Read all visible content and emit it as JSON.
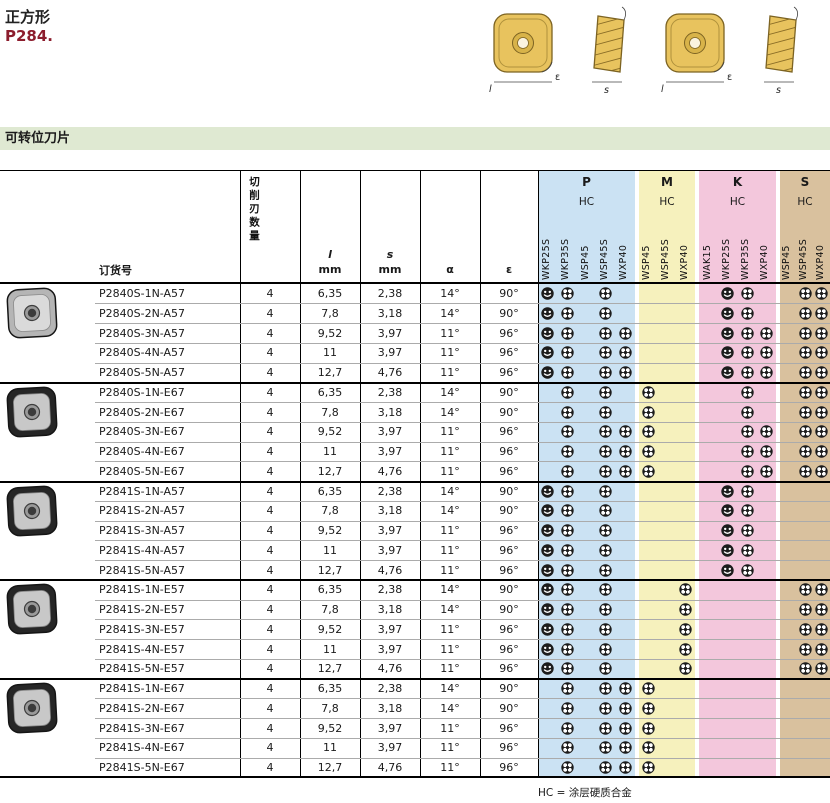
{
  "page": {
    "title": "正方形",
    "subtitle": "P284.",
    "section_header": "可转位刀片",
    "footnote": "HC = 涂层硬质合金"
  },
  "diagrams": {
    "label_l": "l",
    "label_s": "s",
    "label_eps": "ε"
  },
  "table": {
    "col_headers": {
      "order_no": "订货号",
      "edges": "切削刃数量",
      "l": "l",
      "l_unit": "mm",
      "s": "s",
      "s_unit": "mm",
      "alpha": "α",
      "epsilon": "ε"
    },
    "grade_groups": [
      {
        "label": "P",
        "coating": "HC",
        "color": "#cbe2f3",
        "grades": [
          "WKP25S",
          "WKP35S",
          "WSP45",
          "WSP45S",
          "WXP40"
        ]
      },
      {
        "label": "M",
        "coating": "HC",
        "color": "#f6f1bd",
        "grades": [
          "WSP45",
          "WSP45S",
          "WXP40"
        ]
      },
      {
        "label": "K",
        "coating": "HC",
        "color": "#f3c7dc",
        "grades": [
          "WAK15",
          "WKP25S",
          "WKP35S",
          "WXP40"
        ]
      },
      {
        "label": "S",
        "coating": "HC",
        "color": "#d9c19e",
        "grades": [
          "WSP45",
          "WSP45S",
          "WXP40"
        ]
      }
    ],
    "row_groups": [
      {
        "photo": "silver"
      },
      {
        "photo": "black"
      },
      {
        "photo": "black"
      },
      {
        "photo": "black"
      },
      {
        "photo": "black"
      }
    ],
    "rows": [
      {
        "order": "P2840S-1N-A57",
        "edges": "4",
        "l": "6,35",
        "s": "2,38",
        "alpha": "14°",
        "epsilon": "90°",
        "avail": [
          1,
          2,
          0,
          2,
          0,
          0,
          0,
          0,
          0,
          1,
          2,
          0,
          0,
          2,
          2
        ]
      },
      {
        "order": "P2840S-2N-A57",
        "edges": "4",
        "l": "7,8",
        "s": "3,18",
        "alpha": "14°",
        "epsilon": "90°",
        "avail": [
          1,
          2,
          0,
          2,
          0,
          0,
          0,
          0,
          0,
          1,
          2,
          0,
          0,
          2,
          2
        ]
      },
      {
        "order": "P2840S-3N-A57",
        "edges": "4",
        "l": "9,52",
        "s": "3,97",
        "alpha": "11°",
        "epsilon": "96°",
        "avail": [
          1,
          2,
          0,
          2,
          2,
          0,
          0,
          0,
          0,
          1,
          2,
          2,
          0,
          2,
          2
        ]
      },
      {
        "order": "P2840S-4N-A57",
        "edges": "4",
        "l": "11",
        "s": "3,97",
        "alpha": "11°",
        "epsilon": "96°",
        "avail": [
          1,
          2,
          0,
          2,
          2,
          0,
          0,
          0,
          0,
          1,
          2,
          2,
          0,
          2,
          2
        ]
      },
      {
        "order": "P2840S-5N-A57",
        "edges": "4",
        "l": "12,7",
        "s": "4,76",
        "alpha": "11°",
        "epsilon": "96°",
        "avail": [
          1,
          2,
          0,
          2,
          2,
          0,
          0,
          0,
          0,
          1,
          2,
          2,
          0,
          2,
          2
        ]
      },
      {
        "order": "P2840S-1N-E67",
        "edges": "4",
        "l": "6,35",
        "s": "2,38",
        "alpha": "14°",
        "epsilon": "90°",
        "avail": [
          0,
          2,
          0,
          2,
          0,
          2,
          0,
          0,
          0,
          0,
          2,
          0,
          0,
          2,
          2
        ]
      },
      {
        "order": "P2840S-2N-E67",
        "edges": "4",
        "l": "7,8",
        "s": "3,18",
        "alpha": "14°",
        "epsilon": "90°",
        "avail": [
          0,
          2,
          0,
          2,
          0,
          2,
          0,
          0,
          0,
          0,
          2,
          0,
          0,
          2,
          2
        ]
      },
      {
        "order": "P2840S-3N-E67",
        "edges": "4",
        "l": "9,52",
        "s": "3,97",
        "alpha": "11°",
        "epsilon": "96°",
        "avail": [
          0,
          2,
          0,
          2,
          2,
          2,
          0,
          0,
          0,
          0,
          2,
          2,
          0,
          2,
          2
        ]
      },
      {
        "order": "P2840S-4N-E67",
        "edges": "4",
        "l": "11",
        "s": "3,97",
        "alpha": "11°",
        "epsilon": "96°",
        "avail": [
          0,
          2,
          0,
          2,
          2,
          2,
          0,
          0,
          0,
          0,
          2,
          2,
          0,
          2,
          2
        ]
      },
      {
        "order": "P2840S-5N-E67",
        "edges": "4",
        "l": "12,7",
        "s": "4,76",
        "alpha": "11°",
        "epsilon": "96°",
        "avail": [
          0,
          2,
          0,
          2,
          2,
          2,
          0,
          0,
          0,
          0,
          2,
          2,
          0,
          2,
          2
        ]
      },
      {
        "order": "P2841S-1N-A57",
        "edges": "4",
        "l": "6,35",
        "s": "2,38",
        "alpha": "14°",
        "epsilon": "90°",
        "avail": [
          1,
          2,
          0,
          2,
          0,
          0,
          0,
          0,
          0,
          1,
          2,
          0,
          0,
          0,
          0
        ]
      },
      {
        "order": "P2841S-2N-A57",
        "edges": "4",
        "l": "7,8",
        "s": "3,18",
        "alpha": "14°",
        "epsilon": "90°",
        "avail": [
          1,
          2,
          0,
          2,
          0,
          0,
          0,
          0,
          0,
          1,
          2,
          0,
          0,
          0,
          0
        ]
      },
      {
        "order": "P2841S-3N-A57",
        "edges": "4",
        "l": "9,52",
        "s": "3,97",
        "alpha": "11°",
        "epsilon": "96°",
        "avail": [
          1,
          2,
          0,
          2,
          0,
          0,
          0,
          0,
          0,
          1,
          2,
          0,
          0,
          0,
          0
        ]
      },
      {
        "order": "P2841S-4N-A57",
        "edges": "4",
        "l": "11",
        "s": "3,97",
        "alpha": "11°",
        "epsilon": "96°",
        "avail": [
          1,
          2,
          0,
          2,
          0,
          0,
          0,
          0,
          0,
          1,
          2,
          0,
          0,
          0,
          0
        ]
      },
      {
        "order": "P2841S-5N-A57",
        "edges": "4",
        "l": "12,7",
        "s": "4,76",
        "alpha": "11°",
        "epsilon": "96°",
        "avail": [
          1,
          2,
          0,
          2,
          0,
          0,
          0,
          0,
          0,
          1,
          2,
          0,
          0,
          0,
          0
        ]
      },
      {
        "order": "P2841S-1N-E57",
        "edges": "4",
        "l": "6,35",
        "s": "2,38",
        "alpha": "14°",
        "epsilon": "90°",
        "avail": [
          1,
          2,
          0,
          2,
          0,
          0,
          0,
          2,
          0,
          0,
          0,
          0,
          0,
          2,
          2
        ]
      },
      {
        "order": "P2841S-2N-E57",
        "edges": "4",
        "l": "7,8",
        "s": "3,18",
        "alpha": "14°",
        "epsilon": "90°",
        "avail": [
          1,
          2,
          0,
          2,
          0,
          0,
          0,
          2,
          0,
          0,
          0,
          0,
          0,
          2,
          2
        ]
      },
      {
        "order": "P2841S-3N-E57",
        "edges": "4",
        "l": "9,52",
        "s": "3,97",
        "alpha": "11°",
        "epsilon": "96°",
        "avail": [
          1,
          2,
          0,
          2,
          0,
          0,
          0,
          2,
          0,
          0,
          0,
          0,
          0,
          2,
          2
        ]
      },
      {
        "order": "P2841S-4N-E57",
        "edges": "4",
        "l": "11",
        "s": "3,97",
        "alpha": "11°",
        "epsilon": "96°",
        "avail": [
          1,
          2,
          0,
          2,
          0,
          0,
          0,
          2,
          0,
          0,
          0,
          0,
          0,
          2,
          2
        ]
      },
      {
        "order": "P2841S-5N-E57",
        "edges": "4",
        "l": "12,7",
        "s": "4,76",
        "alpha": "11°",
        "epsilon": "96°",
        "avail": [
          1,
          2,
          0,
          2,
          0,
          0,
          0,
          2,
          0,
          0,
          0,
          0,
          0,
          2,
          2
        ]
      },
      {
        "order": "P2841S-1N-E67",
        "edges": "4",
        "l": "6,35",
        "s": "2,38",
        "alpha": "14°",
        "epsilon": "90°",
        "avail": [
          0,
          2,
          0,
          2,
          2,
          2,
          0,
          0,
          0,
          0,
          0,
          0,
          0,
          0,
          0
        ]
      },
      {
        "order": "P2841S-2N-E67",
        "edges": "4",
        "l": "7,8",
        "s": "3,18",
        "alpha": "14°",
        "epsilon": "90°",
        "avail": [
          0,
          2,
          0,
          2,
          2,
          2,
          0,
          0,
          0,
          0,
          0,
          0,
          0,
          0,
          0
        ]
      },
      {
        "order": "P2841S-3N-E67",
        "edges": "4",
        "l": "9,52",
        "s": "3,97",
        "alpha": "11°",
        "epsilon": "96°",
        "avail": [
          0,
          2,
          0,
          2,
          2,
          2,
          0,
          0,
          0,
          0,
          0,
          0,
          0,
          0,
          0
        ]
      },
      {
        "order": "P2841S-4N-E67",
        "edges": "4",
        "l": "11",
        "s": "3,97",
        "alpha": "11°",
        "epsilon": "96°",
        "avail": [
          0,
          2,
          0,
          2,
          2,
          2,
          0,
          0,
          0,
          0,
          0,
          0,
          0,
          0,
          0
        ]
      },
      {
        "order": "P2841S-5N-E67",
        "edges": "4",
        "l": "12,7",
        "s": "4,76",
        "alpha": "11°",
        "epsilon": "96°",
        "avail": [
          0,
          2,
          0,
          2,
          2,
          2,
          0,
          0,
          0,
          0,
          0,
          0,
          0,
          0,
          0
        ]
      }
    ]
  }
}
